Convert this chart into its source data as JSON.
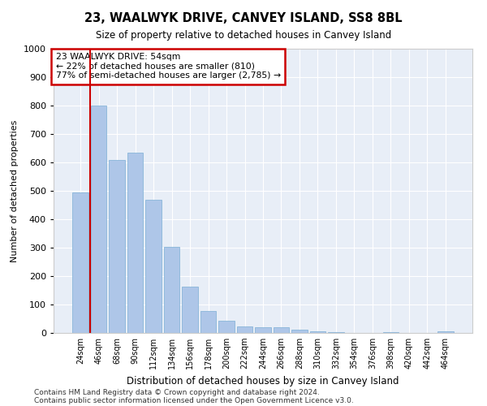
{
  "title": "23, WAALWYK DRIVE, CANVEY ISLAND, SS8 8BL",
  "subtitle": "Size of property relative to detached houses in Canvey Island",
  "xlabel": "Distribution of detached houses by size in Canvey Island",
  "ylabel": "Number of detached properties",
  "footer_line1": "Contains HM Land Registry data © Crown copyright and database right 2024.",
  "footer_line2": "Contains public sector information licensed under the Open Government Licence v3.0.",
  "categories": [
    "24sqm",
    "46sqm",
    "68sqm",
    "90sqm",
    "112sqm",
    "134sqm",
    "156sqm",
    "178sqm",
    "200sqm",
    "222sqm",
    "244sqm",
    "266sqm",
    "288sqm",
    "310sqm",
    "332sqm",
    "354sqm",
    "376sqm",
    "398sqm",
    "420sqm",
    "442sqm",
    "464sqm"
  ],
  "values": [
    495,
    800,
    610,
    635,
    470,
    303,
    163,
    78,
    43,
    22,
    20,
    20,
    11,
    7,
    2,
    1,
    1,
    4,
    0,
    0,
    6
  ],
  "bar_color": "#aec6e8",
  "bar_edge_color": "#7bafd4",
  "background_color": "#e8eef7",
  "grid_color": "#ffffff",
  "annotation_text": "23 WAALWYK DRIVE: 54sqm\n← 22% of detached houses are smaller (810)\n77% of semi-detached houses are larger (2,785) →",
  "annotation_box_color": "#ffffff",
  "annotation_box_edge_color": "#cc0000",
  "vline_x": 0.545,
  "vline_color": "#cc0000",
  "ylim": [
    0,
    1000
  ],
  "yticks": [
    0,
    100,
    200,
    300,
    400,
    500,
    600,
    700,
    800,
    900,
    1000
  ]
}
